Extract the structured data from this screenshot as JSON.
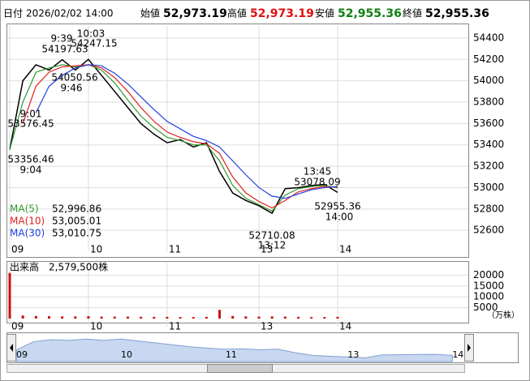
{
  "header": {
    "date_label": "日付",
    "date": "2026/02/02 14:00",
    "open_label": "始値",
    "open": "52,973.19",
    "high_label": "高値",
    "high": "52,973.19",
    "low_label": "安値",
    "low": "52,955.36",
    "close_label": "終値",
    "close": "52,955.36"
  },
  "chart_data": [
    {
      "type": "line",
      "categories": [
        "09",
        null,
        null,
        null,
        null,
        null,
        "10",
        null,
        null,
        null,
        null,
        null,
        "11",
        null,
        null,
        null,
        null,
        null,
        null,
        "13",
        null,
        null,
        null,
        null,
        null,
        "14"
      ],
      "ylim": [
        52480,
        54460
      ],
      "yticks": [
        52600,
        52800,
        53000,
        53200,
        53400,
        53600,
        53800,
        54000,
        54200,
        54400
      ],
      "grid": true,
      "series": [
        {
          "color": "#000000",
          "values": [
            53356,
            54000,
            54150,
            54100,
            54197,
            54100,
            54200,
            54050,
            53900,
            53750,
            53600,
            53500,
            53420,
            53450,
            53380,
            53420,
            53150,
            52950,
            52880,
            52830,
            52760,
            52990,
            53000,
            53020,
            53030,
            52955
          ]
        },
        {
          "name": "MA(5)",
          "color": "#2e9a2e",
          "latest": "52,996.86",
          "values": [
            53356,
            53800,
            54080,
            54120,
            54150,
            54130,
            54150,
            54100,
            53980,
            53820,
            53670,
            53560,
            53470,
            53440,
            53400,
            53400,
            53250,
            53020,
            52900,
            52840,
            52780,
            52930,
            52990,
            53010,
            53020,
            52997
          ]
        },
        {
          "name": "MA(10)",
          "color": "#e02020",
          "latest": "53,005.01",
          "values": [
            null,
            53600,
            53950,
            54080,
            54130,
            54140,
            54150,
            54120,
            54030,
            53900,
            53750,
            53620,
            53520,
            53470,
            53430,
            53410,
            53320,
            53100,
            52950,
            52870,
            52810,
            52880,
            52960,
            52990,
            53010,
            53005
          ]
        },
        {
          "name": "MA(30)",
          "color": "#2040e0",
          "latest": "53,010.75",
          "values": [
            null,
            null,
            53700,
            53950,
            54050,
            54120,
            54150,
            54140,
            54070,
            53970,
            53850,
            53730,
            53620,
            53550,
            53480,
            53440,
            53380,
            53250,
            53120,
            53000,
            52920,
            52900,
            52940,
            52980,
            53000,
            53011
          ]
        }
      ],
      "annotations": [
        "9:39",
        "10:03",
        "54197.63",
        "54247.15",
        "54050.56",
        "9:46",
        "9:01",
        "53576.45",
        "53356.46",
        "9:04",
        "13:45",
        "53078.09",
        "52955.36",
        "14:00",
        "52710.08",
        "13:12"
      ]
    },
    {
      "type": "bar",
      "title": "出来高　2,579,500株",
      "unit": "（万株）",
      "categories": [
        "09",
        null,
        null,
        null,
        null,
        null,
        "10",
        null,
        null,
        null,
        null,
        null,
        "11",
        null,
        null,
        null,
        null,
        null,
        null,
        "13",
        null,
        null,
        null,
        null,
        null,
        "14"
      ],
      "ylim": [
        0,
        22000
      ],
      "yticks": [
        5000,
        10000,
        15000,
        20000
      ],
      "grid": true,
      "color": "#cc1010",
      "values": [
        21000,
        1400,
        1200,
        1100,
        1000,
        1000,
        1100,
        900,
        900,
        900,
        800,
        800,
        800,
        700,
        700,
        800,
        4000,
        1200,
        1000,
        900,
        1000,
        900,
        800,
        700,
        700,
        800
      ]
    }
  ]
}
